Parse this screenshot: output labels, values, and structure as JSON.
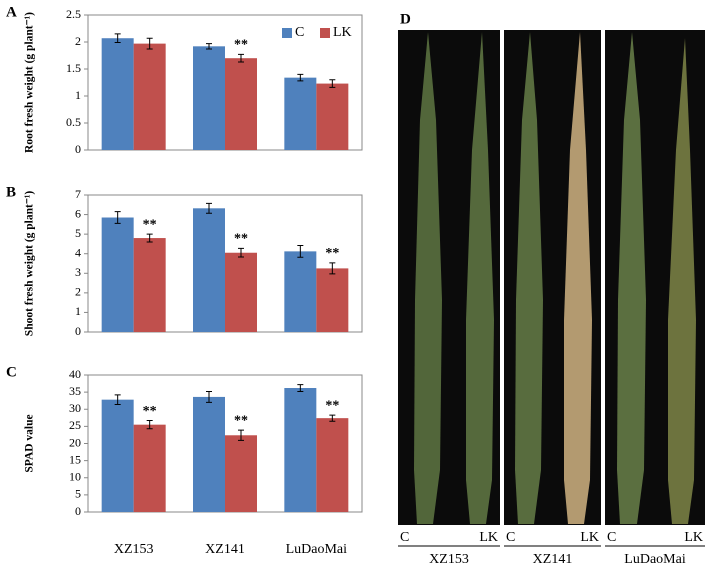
{
  "chart_data": [
    {
      "type": "bar",
      "panel": "A",
      "y_label": "Root fresh weight (g plant⁻¹)",
      "categories": [
        null,
        null,
        null
      ],
      "series": [
        {
          "name": "C",
          "color": "#4f81bd",
          "values": [
            2.07,
            1.92,
            1.34
          ],
          "errors": [
            0.08,
            0.05,
            0.06
          ],
          "significance": [
            null,
            null,
            null
          ]
        },
        {
          "name": "LK",
          "color": "#c0504d",
          "values": [
            1.97,
            1.7,
            1.23
          ],
          "errors": [
            0.1,
            0.07,
            0.07
          ],
          "significance": [
            null,
            "**",
            null
          ]
        }
      ],
      "ylim": [
        0,
        2.5
      ],
      "yticks": [
        0,
        0.5,
        1,
        1.5,
        2,
        2.5
      ],
      "legend": "upper right"
    },
    {
      "type": "bar",
      "panel": "B",
      "y_label": "Shoot fresh weight (g plant⁻¹)",
      "categories": [
        null,
        null,
        null
      ],
      "series": [
        {
          "name": "C",
          "color": "#4f81bd",
          "values": [
            5.85,
            6.32,
            4.12
          ],
          "errors": [
            0.3,
            0.25,
            0.3
          ],
          "significance": [
            null,
            null,
            null
          ]
        },
        {
          "name": "LK",
          "color": "#c0504d",
          "values": [
            4.8,
            4.05,
            3.25
          ],
          "errors": [
            0.2,
            0.22,
            0.28
          ],
          "significance": [
            "**",
            "**",
            "**"
          ]
        }
      ],
      "ylim": [
        0,
        7
      ],
      "yticks": [
        0,
        1,
        2,
        3,
        4,
        5,
        6,
        7
      ]
    },
    {
      "type": "bar",
      "panel": "C",
      "y_label": "SPAD value",
      "categories": [
        "XZ153",
        "XZ141",
        "LuDaoMai"
      ],
      "series": [
        {
          "name": "C",
          "color": "#4f81bd",
          "values": [
            32.8,
            33.6,
            36.2
          ],
          "errors": [
            1.4,
            1.6,
            1.0
          ],
          "significance": [
            null,
            null,
            null
          ]
        },
        {
          "name": "LK",
          "color": "#c0504d",
          "values": [
            25.5,
            22.4,
            27.4
          ],
          "errors": [
            1.2,
            1.5,
            0.9
          ],
          "significance": [
            "**",
            "**",
            "**"
          ]
        }
      ],
      "ylim": [
        0,
        40
      ],
      "yticks": [
        0,
        5,
        10,
        15,
        20,
        25,
        30,
        35,
        40
      ]
    }
  ],
  "photo_panel": {
    "label": "D",
    "groups": [
      {
        "name": "XZ153",
        "treatments": [
          "C",
          "LK"
        ]
      },
      {
        "name": "XZ141",
        "treatments": [
          "C",
          "LK"
        ]
      },
      {
        "name": "LuDaoMai",
        "treatments": [
          "C",
          "LK"
        ]
      }
    ]
  }
}
